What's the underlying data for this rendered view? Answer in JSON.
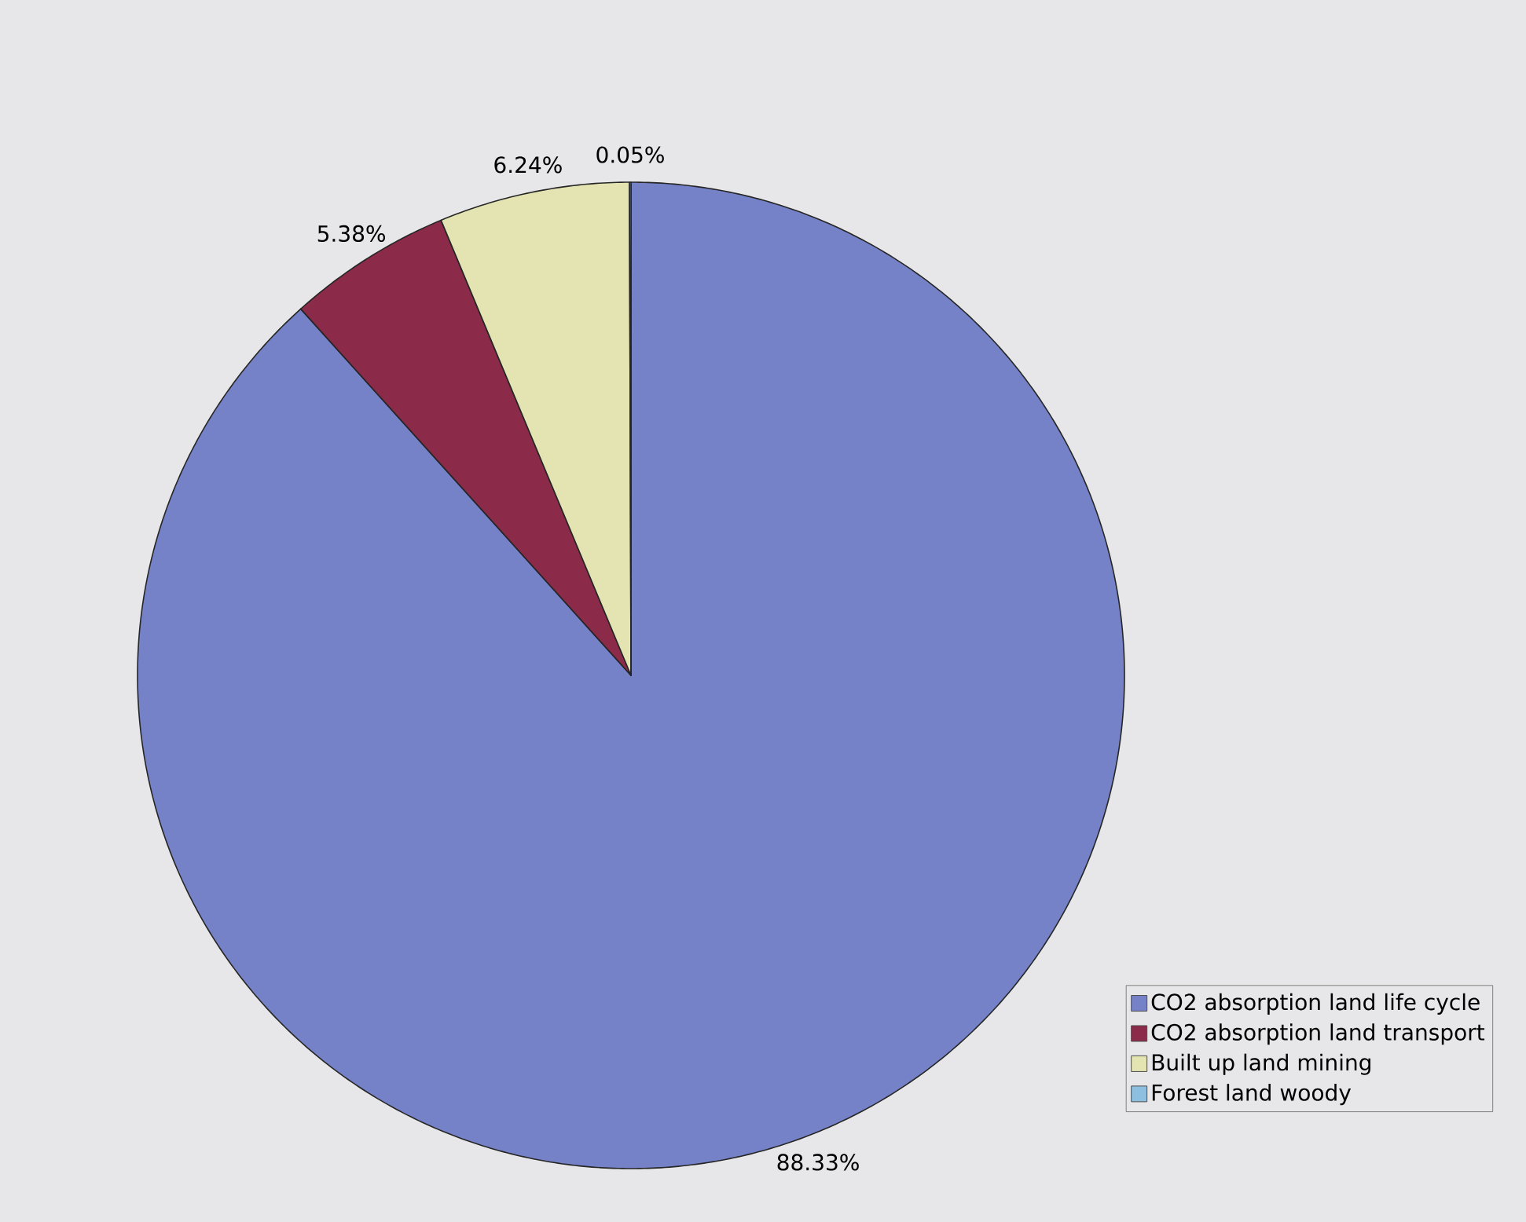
{
  "chart_data": {
    "type": "pie",
    "categories": [
      "CO2 absorption land life cycle",
      "CO2 absorption land transport",
      "Built up land mining",
      "Forest land woody"
    ],
    "values": [
      88.33,
      5.38,
      6.24,
      0.05
    ],
    "colors": [
      "#7682c8",
      "#8c2a4a",
      "#e4e4b2",
      "#8cbfe0"
    ],
    "value_labels": [
      "88.33%",
      "5.38%",
      "6.24%",
      "0.05%"
    ],
    "legend": "bottom right"
  }
}
